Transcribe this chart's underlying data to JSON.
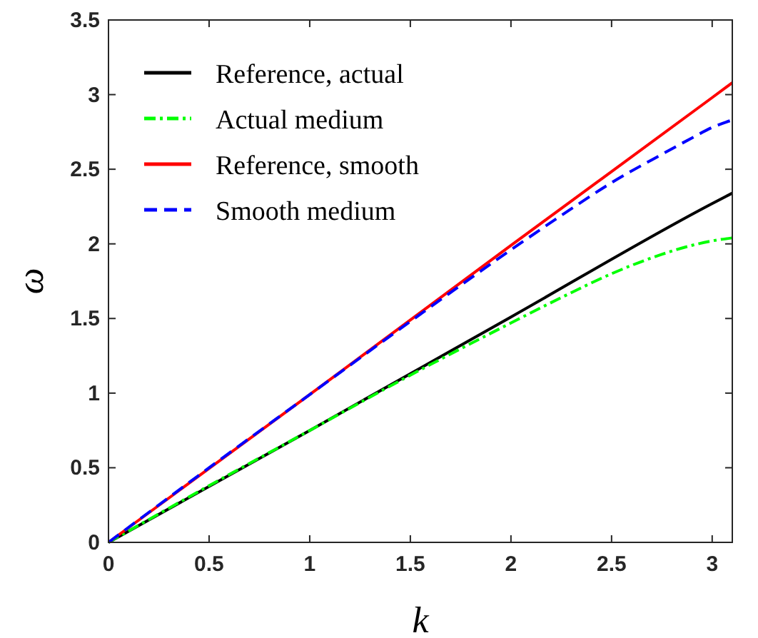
{
  "chart_data": {
    "type": "line",
    "xlabel": "k",
    "ylabel": "ω",
    "xlim": [
      0,
      3.1
    ],
    "ylim": [
      0,
      3.5
    ],
    "xticks": [
      0,
      0.5,
      1,
      1.5,
      2,
      2.5,
      3
    ],
    "yticks": [
      0,
      0.5,
      1,
      1.5,
      2,
      2.5,
      3,
      3.5
    ],
    "grid": false,
    "legend": "top left",
    "series": [
      {
        "name": "Reference, actual",
        "color": "#000000",
        "line_style": "solid",
        "x": [
          0,
          1,
          2,
          3,
          3.1
        ],
        "values": [
          0,
          0.75,
          1.51,
          2.27,
          2.34
        ]
      },
      {
        "name": "Actual medium",
        "color": "#00ff00",
        "line_style": "dashdot",
        "x": [
          0,
          0.5,
          1,
          1.5,
          2,
          2.25,
          2.5,
          2.75,
          2.9,
          3,
          3.1
        ],
        "values": [
          0,
          0.38,
          0.75,
          1.12,
          1.47,
          1.64,
          1.8,
          1.93,
          1.99,
          2.02,
          2.04
        ]
      },
      {
        "name": "Reference, smooth",
        "color": "#ff0000",
        "line_style": "solid",
        "x": [
          0,
          1,
          2,
          3,
          3.1
        ],
        "values": [
          0,
          0.99,
          1.99,
          2.98,
          3.08
        ]
      },
      {
        "name": "Smooth medium",
        "color": "#0000ff",
        "line_style": "dashed",
        "x": [
          0,
          0.5,
          1,
          1.5,
          2,
          2.25,
          2.5,
          2.75,
          2.9,
          3,
          3.1
        ],
        "values": [
          0,
          0.5,
          0.99,
          1.48,
          1.96,
          2.19,
          2.41,
          2.6,
          2.71,
          2.78,
          2.83
        ]
      }
    ]
  }
}
